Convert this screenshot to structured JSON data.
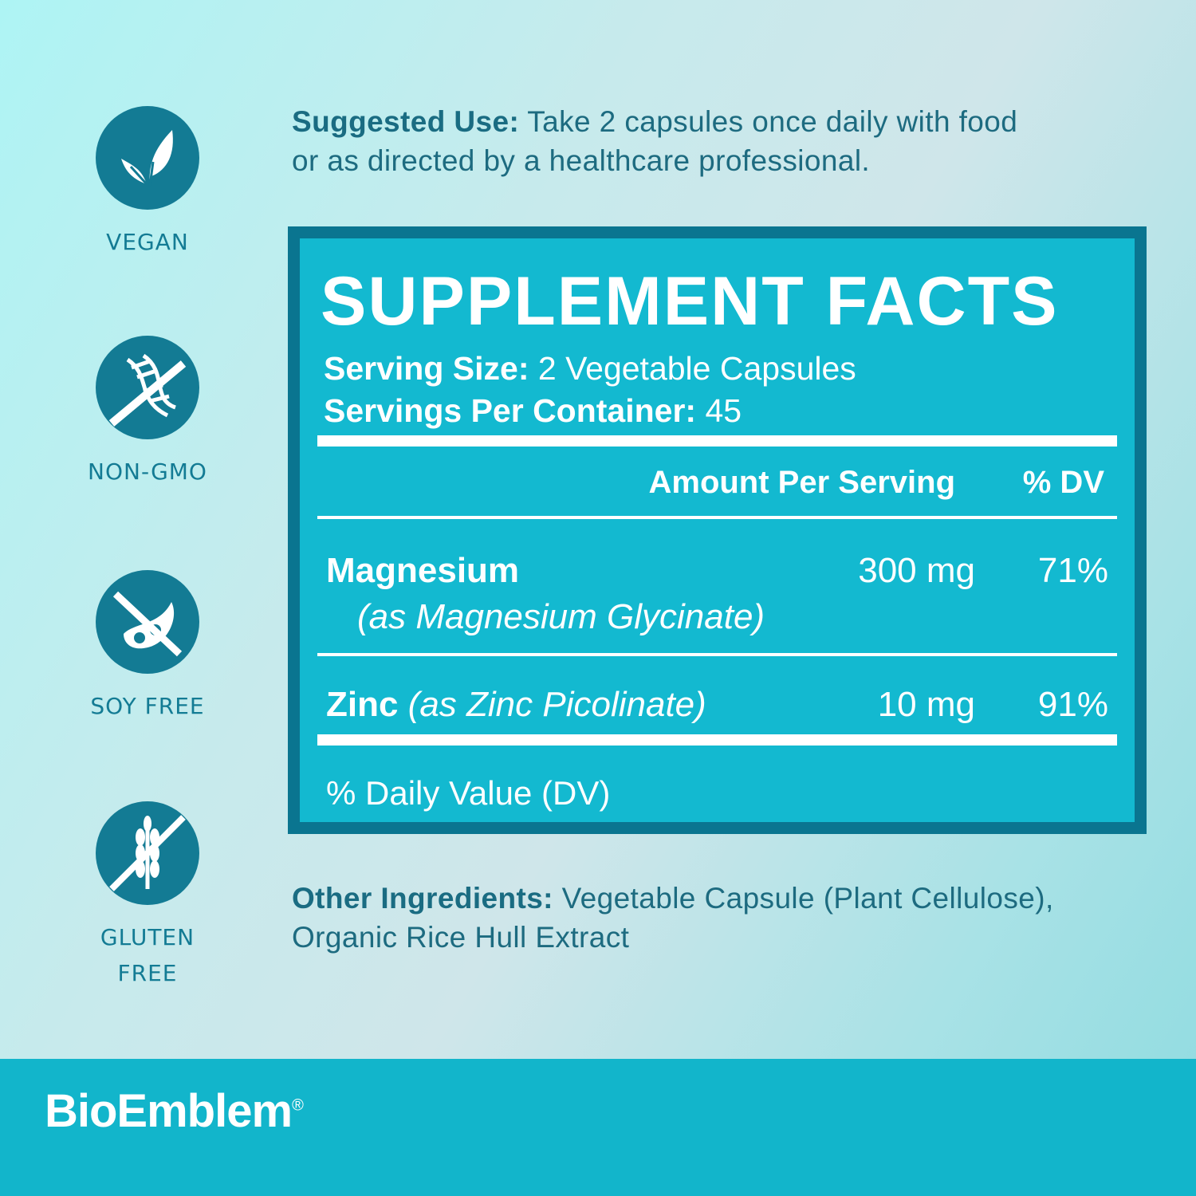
{
  "badges": [
    {
      "label": "VEGAN",
      "icon": "leaf-icon"
    },
    {
      "label": "NON-GMO",
      "icon": "dna-crossed-icon"
    },
    {
      "label": "SOY FREE",
      "icon": "soybean-crossed-icon"
    },
    {
      "label": "GLUTEN FREE",
      "icon": "wheat-crossed-icon"
    }
  ],
  "suggested_use": {
    "label": "Suggested Use:",
    "text": " Take 2 capsules once daily with food",
    "text2": "or as directed by a healthcare professional."
  },
  "facts": {
    "title": "SUPPLEMENT FACTS",
    "serving_size_label": "Serving Size:",
    "serving_size": " 2 Vegetable Capsules",
    "servings_label": "Servings Per Container:",
    "servings": " 45",
    "col_amount": "Amount Per Serving",
    "col_dv": "% DV",
    "rows": [
      {
        "name": "Magnesium",
        "source": "(as Magnesium Glycinate)",
        "amount": "300 mg",
        "dv": "71%"
      },
      {
        "name": "Zinc",
        "source": " (as Zinc Picolinate)",
        "amount": "10 mg",
        "dv": "91%"
      }
    ],
    "footnote": "% Daily Value (DV)"
  },
  "other": {
    "label": "Other Ingredients:",
    "text": " Vegetable Capsule (Plant Cellulose),",
    "text2": "Organic Rice Hull Extract"
  },
  "brand": {
    "name": "BioEmblem",
    "mark": "®"
  },
  "colors": {
    "dark_teal": "#0a7590",
    "panel": "#13b9d0",
    "text": "#1d6b80"
  }
}
